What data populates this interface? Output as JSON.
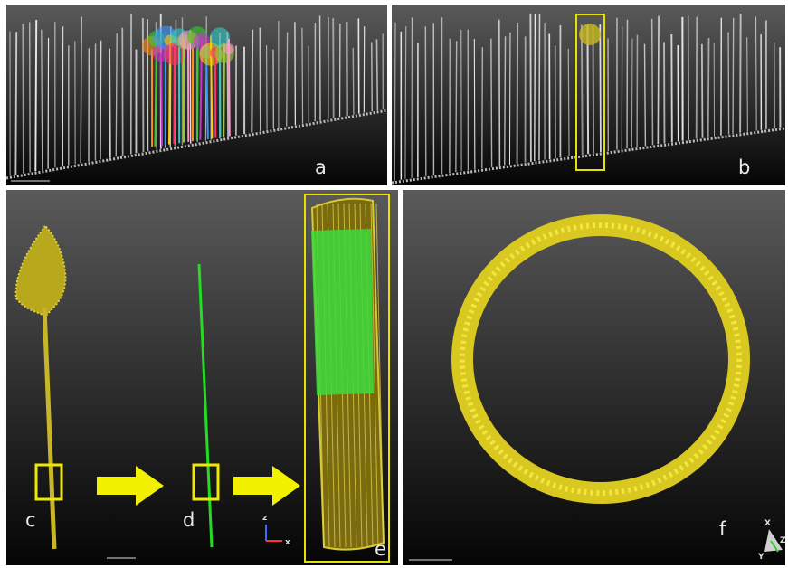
{
  "panels": [
    {
      "label": "a"
    },
    {
      "label": "b"
    },
    {
      "label": "c"
    },
    {
      "label": "d"
    },
    {
      "label": "e"
    },
    {
      "label": "f"
    }
  ],
  "axis_gizmo_cd": [
    "z",
    "x"
  ],
  "axis_gizmo_f": [
    "X",
    "Y",
    "Z"
  ]
}
